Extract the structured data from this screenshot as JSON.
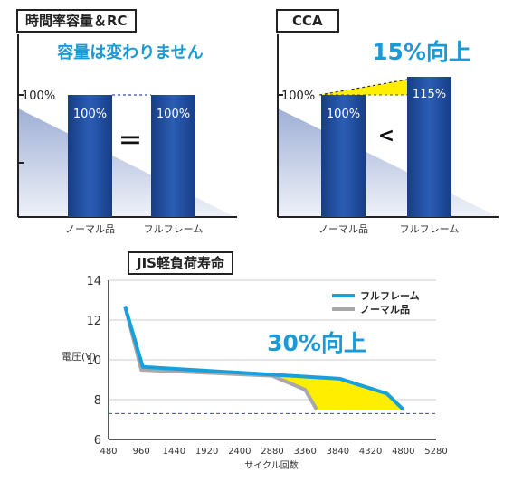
{
  "chart_data": [
    {
      "type": "bar",
      "title": "時間率容量＆RC",
      "subtitle": "容量は変わりません",
      "categories": [
        "ノーマル品",
        "フルフレーム"
      ],
      "values": [
        100,
        100
      ],
      "value_labels": [
        "100%",
        "100%"
      ],
      "reference_label": "100%",
      "comparison_symbol": "＝",
      "bar_color": "#1f4e9e"
    },
    {
      "type": "bar",
      "title": "CCA",
      "highlight": "15%向上",
      "categories": [
        "ノーマル品",
        "フルフレーム"
      ],
      "values": [
        100,
        115
      ],
      "value_labels": [
        "100%",
        "115%"
      ],
      "reference_label": "100%",
      "comparison_symbol": "<",
      "bar_color": "#1f4e9e",
      "highlight_color": "#ffee00"
    },
    {
      "type": "line",
      "title": "JIS軽負荷寿命",
      "ylabel": "電圧(V)",
      "xlabel": "サイクル回数",
      "xlim": [
        480,
        5280
      ],
      "ylim": [
        6,
        14
      ],
      "x_ticks": [
        480,
        960,
        1440,
        1920,
        2400,
        2880,
        3360,
        3840,
        4320,
        4800,
        5280
      ],
      "y_ticks": [
        6,
        8,
        10,
        12,
        14
      ],
      "threshold": 7.3,
      "annotation": "30%向上",
      "legend_position": "top-right",
      "series": [
        {
          "name": "フルフレーム",
          "color": "#18a0dc",
          "x": [
            720,
            980,
            3870,
            4560,
            4800
          ],
          "y": [
            12.7,
            9.65,
            9.05,
            8.3,
            7.5
          ]
        },
        {
          "name": "ノーマル品",
          "color": "#a8a8a8",
          "x": [
            720,
            960,
            2880,
            3360,
            3530
          ],
          "y": [
            12.7,
            9.5,
            9.2,
            8.5,
            7.5
          ]
        }
      ]
    }
  ]
}
